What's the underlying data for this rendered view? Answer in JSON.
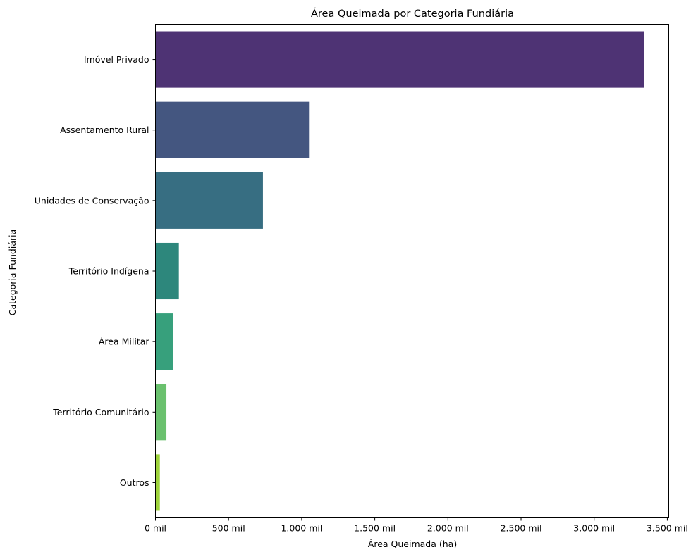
{
  "chart_data": {
    "type": "bar",
    "orientation": "horizontal",
    "title": "Área Queimada por Categoria Fundiária",
    "xlabel": "Área Queimada (ha)",
    "ylabel": "Categoria Fundiária",
    "categories": [
      "Imóvel Privado",
      "Assentamento Rural",
      "Unidades de Conservação",
      "Território Indígena",
      "Área Militar",
      "Território Comunitário",
      "Outros"
    ],
    "values": [
      3340000,
      1050000,
      735000,
      160000,
      122000,
      75000,
      30000
    ],
    "xlim": [
      0,
      3510000
    ],
    "xticks": [
      0,
      500000,
      1000000,
      1500000,
      2000000,
      2500000,
      3000000,
      3500000
    ],
    "xtick_labels": [
      "0 mil",
      "500 mil",
      "1.000 mil",
      "1.500 mil",
      "2.000 mil",
      "2.500 mil",
      "3.000 mil",
      "3.500 mil"
    ],
    "colors": [
      "#4e3374",
      "#445680",
      "#376e82",
      "#2d877c",
      "#37a07c",
      "#6ac16e",
      "#9ed33b"
    ],
    "grid": false,
    "legend": false
  }
}
